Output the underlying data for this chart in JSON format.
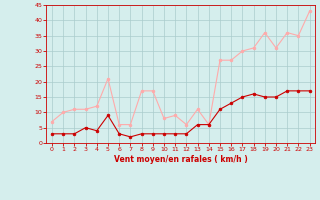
{
  "x": [
    0,
    1,
    2,
    3,
    4,
    5,
    6,
    7,
    8,
    9,
    10,
    11,
    12,
    13,
    14,
    15,
    16,
    17,
    18,
    19,
    20,
    21,
    22,
    23
  ],
  "avg_wind": [
    3,
    3,
    3,
    5,
    4,
    9,
    3,
    2,
    3,
    3,
    3,
    3,
    3,
    6,
    6,
    11,
    13,
    15,
    16,
    15,
    15,
    17,
    17,
    17
  ],
  "gust_wind": [
    7,
    10,
    11,
    11,
    12,
    21,
    6,
    6,
    17,
    17,
    8,
    9,
    6,
    11,
    6,
    27,
    27,
    30,
    31,
    36,
    31,
    36,
    35,
    43
  ],
  "avg_color": "#cc0000",
  "gust_color": "#ffaaaa",
  "bg_color": "#d5eeed",
  "grid_color": "#aacccc",
  "xlabel": "Vent moyen/en rafales ( km/h )",
  "xlabel_color": "#cc0000",
  "tick_color": "#cc0000",
  "spine_color": "#cc0000",
  "ylim": [
    0,
    45
  ],
  "yticks": [
    0,
    5,
    10,
    15,
    20,
    25,
    30,
    35,
    40,
    45
  ],
  "xticks": [
    0,
    1,
    2,
    3,
    4,
    5,
    6,
    7,
    8,
    9,
    10,
    11,
    12,
    13,
    14,
    15,
    16,
    17,
    18,
    19,
    20,
    21,
    22,
    23
  ],
  "marker_size": 2.0,
  "line_width": 0.8
}
